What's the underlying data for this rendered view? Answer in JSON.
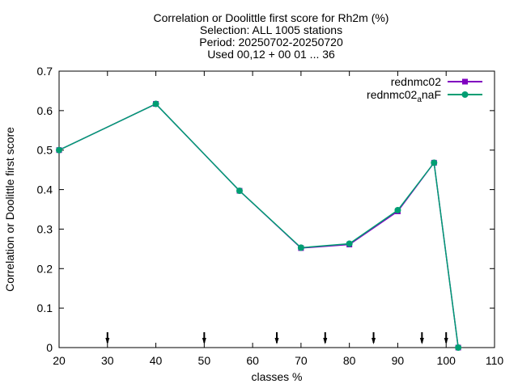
{
  "chart_data": {
    "type": "line",
    "title_lines": [
      "Correlation or Doolittle first score  for Rh2m (%)",
      "Selection: ALL   1005 stations",
      "Period: 20250702-20250720",
      "Used 00,12 + 00 01 ... 36"
    ],
    "xlabel": "classes %",
    "ylabel": "Correlation or Doolittle first score",
    "xlim": [
      20,
      110
    ],
    "ylim": [
      0,
      0.7
    ],
    "xticks": [
      20,
      30,
      40,
      50,
      60,
      70,
      80,
      90,
      100,
      110
    ],
    "yticks": [
      0,
      0.1,
      0.2,
      0.3,
      0.4,
      0.5,
      0.6,
      0.7
    ],
    "ytick_labels": [
      "0",
      "0.1",
      "0.2",
      "0.3",
      "0.4",
      "0.5",
      "0.6",
      "0.7"
    ],
    "grid": false,
    "legend_position": "top-right",
    "arrows_x": [
      30,
      50,
      65,
      75,
      85,
      95,
      100
    ],
    "series": [
      {
        "name": "rednmc02",
        "name_sub": "",
        "name_tail": "",
        "color": "#8000c0",
        "marker": "filled-square",
        "x": [
          20,
          40,
          57.3,
          70,
          80,
          90,
          97.5,
          102.5
        ],
        "y": [
          0.5,
          0.617,
          0.397,
          0.252,
          0.261,
          0.345,
          0.468,
          0.0
        ]
      },
      {
        "name": "rednmc02",
        "name_sub": "a",
        "name_tail": "naF",
        "color": "#009e73",
        "marker": "filled-circle",
        "x": [
          20,
          40,
          57.3,
          70,
          80,
          90,
          97.5,
          102.5
        ],
        "y": [
          0.5,
          0.617,
          0.397,
          0.253,
          0.263,
          0.348,
          0.468,
          0.0
        ]
      }
    ]
  }
}
